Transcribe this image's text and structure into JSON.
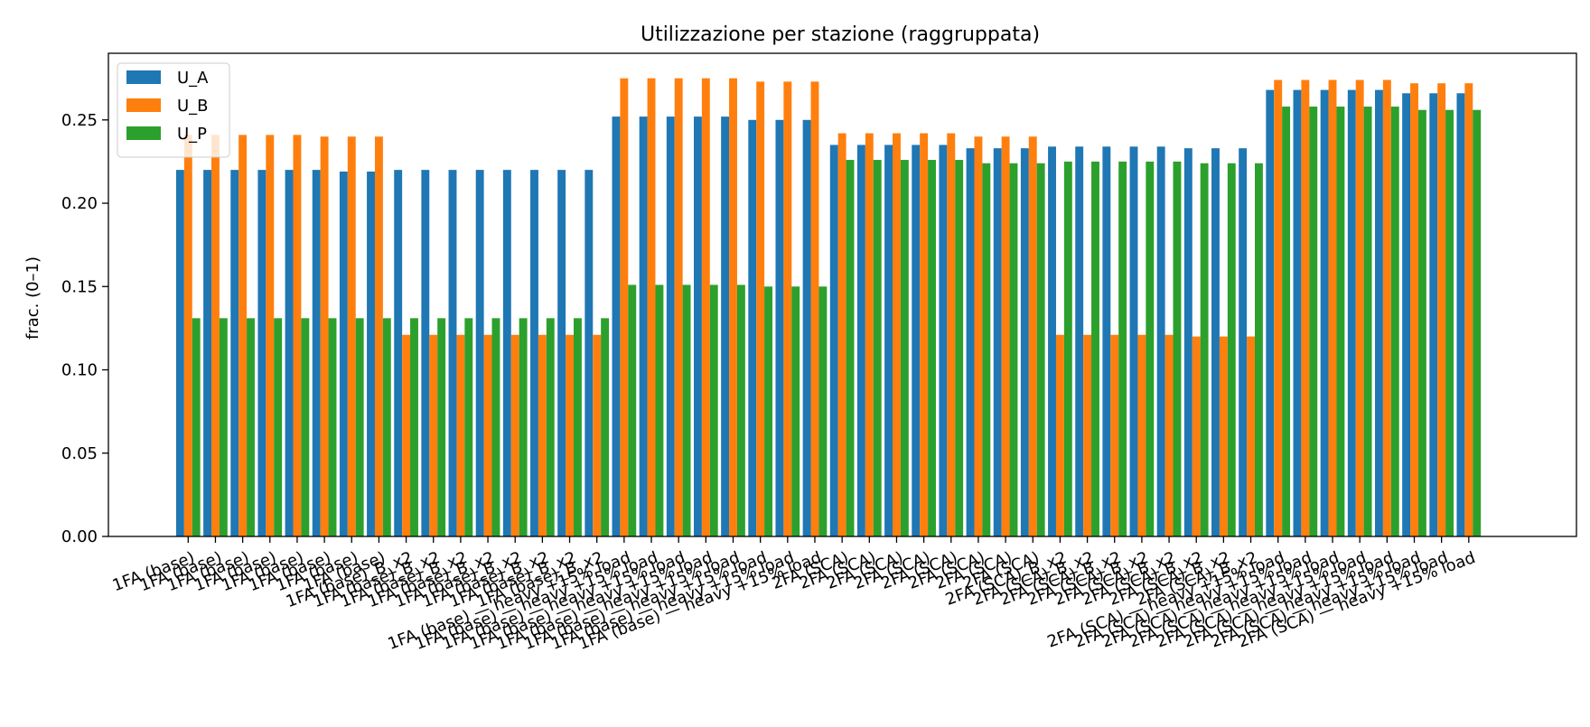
{
  "chart_data": {
    "type": "bar",
    "title": "Utilizzazione per stazione (raggruppata)",
    "xlabel": "",
    "ylabel": "frac. (0–1)",
    "ylim": [
      0,
      0.29
    ],
    "yticks": [
      "0.00",
      "0.05",
      "0.10",
      "0.15",
      "0.20",
      "0.25"
    ],
    "ytick_values": [
      0,
      0.05,
      0.1,
      0.15,
      0.2,
      0.25
    ],
    "legend_position": "top-left",
    "categories": [
      "1FA (base)",
      "1FA (base)",
      "1FA (base)",
      "1FA (base)",
      "1FA (base)",
      "1FA (base)",
      "1FA (base)",
      "1FA (base)",
      "1FA (base)_B_x2",
      "1FA (base)_B_x2",
      "1FA (base)_B_x2",
      "1FA (base)_B_x2",
      "1FA (base)_B_x2",
      "1FA (base)_B_x2",
      "1FA (base)_B_x2",
      "1FA (base)_B_x2",
      "1FA (base) — heavy +15% load",
      "1FA (base) — heavy +15% load",
      "1FA (base) — heavy +15% load",
      "1FA (base) — heavy +15% load",
      "1FA (base) — heavy +15% load",
      "1FA (base) — heavy +15% load",
      "1FA (base) — heavy +15% load",
      "1FA (base) — heavy +15% load",
      "2FA (SCA)",
      "2FA (SCA)",
      "2FA (SCA)",
      "2FA (SCA)",
      "2FA (SCA)",
      "2FA (SCA)",
      "2FA (SCA)",
      "2FA (SCA)",
      "2FA (SCA)_B_x2",
      "2FA (SCA)_B_x2",
      "2FA (SCA)_B_x2",
      "2FA (SCA)_B_x2",
      "2FA (SCA)_B_x2",
      "2FA (SCA)_B_x2",
      "2FA (SCA)_B_x2",
      "2FA (SCA)_B_x2",
      "2FA (SCA) — heavy +15% load",
      "2FA (SCA) — heavy +15% load",
      "2FA (SCA) — heavy +15% load",
      "2FA (SCA) — heavy +15% load",
      "2FA (SCA) — heavy +15% load",
      "2FA (SCA) — heavy +15% load",
      "2FA (SCA) — heavy +15% load",
      "2FA (SCA) — heavy +15% load"
    ],
    "series": [
      {
        "name": "U_A",
        "color": "#1f77b4",
        "values": [
          0.22,
          0.22,
          0.22,
          0.22,
          0.22,
          0.22,
          0.219,
          0.219,
          0.22,
          0.22,
          0.22,
          0.22,
          0.22,
          0.22,
          0.22,
          0.22,
          0.252,
          0.252,
          0.252,
          0.252,
          0.252,
          0.25,
          0.25,
          0.25,
          0.235,
          0.235,
          0.235,
          0.235,
          0.235,
          0.233,
          0.233,
          0.233,
          0.234,
          0.234,
          0.234,
          0.234,
          0.234,
          0.233,
          0.233,
          0.233,
          0.268,
          0.268,
          0.268,
          0.268,
          0.268,
          0.266,
          0.266,
          0.266
        ]
      },
      {
        "name": "U_B",
        "color": "#ff7f0e",
        "values": [
          0.241,
          0.241,
          0.241,
          0.241,
          0.241,
          0.24,
          0.24,
          0.24,
          0.121,
          0.121,
          0.121,
          0.121,
          0.121,
          0.121,
          0.121,
          0.121,
          0.275,
          0.275,
          0.275,
          0.275,
          0.275,
          0.273,
          0.273,
          0.273,
          0.242,
          0.242,
          0.242,
          0.242,
          0.242,
          0.24,
          0.24,
          0.24,
          0.121,
          0.121,
          0.121,
          0.121,
          0.121,
          0.12,
          0.12,
          0.12,
          0.274,
          0.274,
          0.274,
          0.274,
          0.274,
          0.272,
          0.272,
          0.272
        ]
      },
      {
        "name": "U_P",
        "color": "#2ca02c",
        "values": [
          0.131,
          0.131,
          0.131,
          0.131,
          0.131,
          0.131,
          0.131,
          0.131,
          0.131,
          0.131,
          0.131,
          0.131,
          0.131,
          0.131,
          0.131,
          0.131,
          0.151,
          0.151,
          0.151,
          0.151,
          0.151,
          0.15,
          0.15,
          0.15,
          0.226,
          0.226,
          0.226,
          0.226,
          0.226,
          0.224,
          0.224,
          0.224,
          0.225,
          0.225,
          0.225,
          0.225,
          0.225,
          0.224,
          0.224,
          0.224,
          0.258,
          0.258,
          0.258,
          0.258,
          0.258,
          0.256,
          0.256,
          0.256
        ]
      }
    ]
  }
}
